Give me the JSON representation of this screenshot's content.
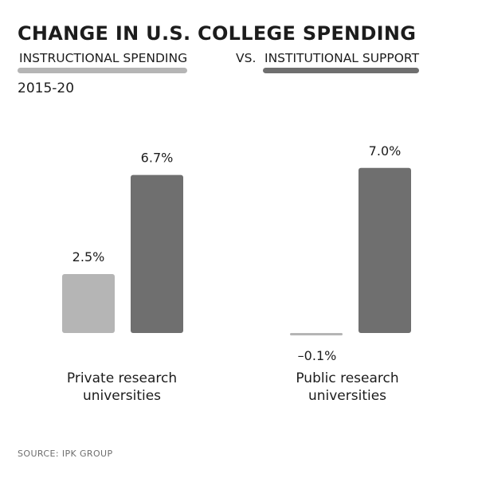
{
  "title": "CHANGE IN U.S. COLLEGE SPENDING",
  "legend": {
    "instructional": "INSTRUCTIONAL SPENDING",
    "vs": "VS.",
    "institutional": "INSTITUTIONAL SUPPORT"
  },
  "period": "2015-20",
  "source": "SOURCE: IPK GROUP",
  "colors": {
    "instructional": "#b5b5b5",
    "institutional": "#6f6f6f",
    "text": "#1c1c1c"
  },
  "chart_data": {
    "type": "bar",
    "title": "CHANGE IN U.S. COLLEGE SPENDING",
    "subtitle": "INSTRUCTIONAL SPENDING VS. INSTITUTIONAL SUPPORT",
    "period": "2015-20",
    "categories": [
      [
        "Private research",
        "universities"
      ],
      [
        "Public research",
        "universities"
      ]
    ],
    "series": [
      {
        "name": "Instructional spending",
        "values": [
          2.5,
          -0.1
        ],
        "labels": [
          "2.5%",
          "–0.1%"
        ]
      },
      {
        "name": "Institutional support",
        "values": [
          6.7,
          7.0
        ],
        "labels": [
          "6.7%",
          "7.0%"
        ]
      }
    ],
    "ylim": [
      0,
      7.5
    ],
    "xlabel": "",
    "ylabel": "",
    "grid": false,
    "legend_position": "top"
  }
}
